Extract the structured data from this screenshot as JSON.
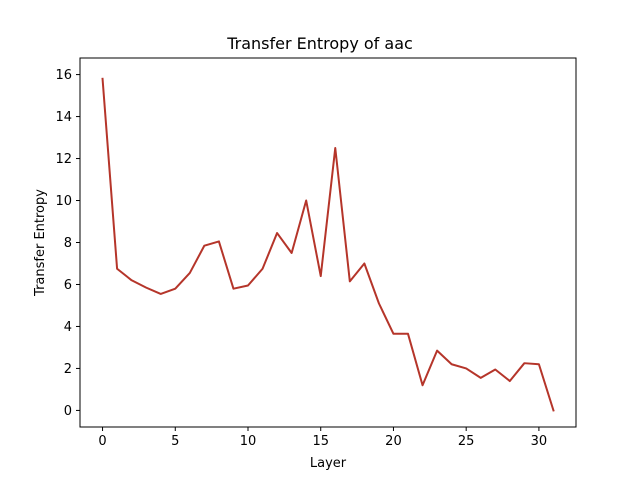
{
  "chart_data": {
    "type": "line",
    "title": "Transfer Entropy of aac",
    "xlabel": "Layer",
    "ylabel": "Transfer Entropy",
    "xlim": [
      -1.55,
      32.55
    ],
    "ylim": [
      -0.79,
      16.79
    ],
    "xticks": [
      0,
      5,
      10,
      15,
      20,
      25,
      30
    ],
    "yticks": [
      0,
      2,
      4,
      6,
      8,
      10,
      12,
      14,
      16
    ],
    "grid": false,
    "series": [
      {
        "color": "#b5352a",
        "x": [
          0,
          1,
          2,
          3,
          4,
          5,
          6,
          7,
          8,
          9,
          10,
          11,
          12,
          13,
          14,
          15,
          16,
          17,
          18,
          19,
          20,
          21,
          22,
          23,
          24,
          25,
          26,
          27,
          28,
          29,
          30,
          31
        ],
        "values": [
          15.8,
          6.75,
          6.2,
          5.85,
          5.55,
          5.8,
          6.55,
          7.85,
          8.05,
          5.8,
          5.95,
          6.75,
          8.45,
          7.5,
          10.0,
          6.4,
          12.5,
          6.15,
          7.0,
          5.1,
          3.65,
          3.65,
          1.2,
          2.85,
          2.2,
          2.0,
          1.55,
          1.95,
          1.4,
          2.25,
          2.2,
          0.0
        ]
      }
    ]
  }
}
